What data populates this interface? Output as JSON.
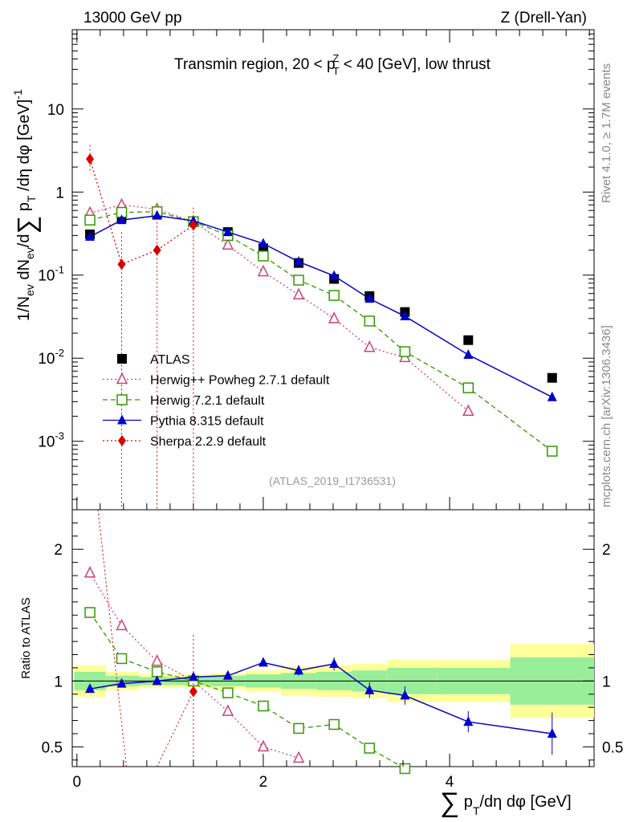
{
  "header": {
    "left": "13000 GeV pp",
    "right": "Z (Drell-Yan)"
  },
  "side_text": {
    "top": "Rivet 4.1.0, ≥ 1.7M events",
    "bottom": "mcplots.cern.ch [arXiv:1306.3436]"
  },
  "chart_data": [
    {
      "type": "scatter",
      "panel": "main",
      "title": "Transmin region, 20 < p_T^Z < 40 [GeV], low thrust",
      "ylabel": "1/N_ev dN_ev/dΣ p_T/dη dφ [GeV]^-1",
      "yscale": "log",
      "xlim": [
        -0.05,
        5.55
      ],
      "ylim": [
        0.00015,
        90
      ],
      "y_ticks": [
        "10^-3",
        "10^-2",
        "10^-1",
        "1",
        "10"
      ],
      "watermark": "(ATLAS_2019_I1736531)",
      "x": [
        0.14,
        0.48,
        0.86,
        1.25,
        1.62,
        2.0,
        2.38,
        2.76,
        3.14,
        3.52,
        4.2,
        5.1
      ],
      "series": [
        {
          "name": "ATLAS",
          "color": "#000000",
          "marker": "square",
          "values": [
            0.31,
            0.49,
            0.54,
            0.44,
            0.33,
            0.21,
            0.14,
            0.09,
            0.056,
            0.036,
            0.0165,
            0.0058
          ]
        },
        {
          "name": "Herwig++ Powheg 2.7.1 default",
          "color": "#cc4477",
          "marker": "triangle-open",
          "line": "dotted",
          "values": [
            0.56,
            0.7,
            0.62,
            0.44,
            0.23,
            0.11,
            0.058,
            0.03,
            0.0135,
            0.0102,
            0.0023,
            null
          ]
        },
        {
          "name": "Herwig 7.2.1 default",
          "color": "#339900",
          "marker": "square-open",
          "line": "dashed",
          "values": [
            0.46,
            0.57,
            0.58,
            0.44,
            0.3,
            0.17,
            0.087,
            0.057,
            0.028,
            0.012,
            0.0044,
            0.00076
          ]
        },
        {
          "name": "Pythia 8.315 default",
          "color": "#0000cc",
          "marker": "triangle",
          "line": "solid",
          "values": [
            0.29,
            0.46,
            0.52,
            0.45,
            0.33,
            0.24,
            0.145,
            0.098,
            0.052,
            0.032,
            0.011,
            0.0034
          ]
        },
        {
          "name": "Sherpa 2.2.9 default",
          "color": "#dd0000",
          "marker": "diamond",
          "line": "dotted",
          "values": [
            2.5,
            0.135,
            0.2,
            0.4,
            null,
            null,
            null,
            null,
            null,
            null,
            null,
            null
          ]
        }
      ]
    },
    {
      "type": "scatter",
      "panel": "ratio",
      "ylabel": "Ratio to ATLAS",
      "xlabel": "Σ p_T/dη dφ [GeV]",
      "ylim": [
        0.35,
        2.3
      ],
      "y_ticks": [
        "0.5",
        "1",
        "2"
      ],
      "x_ticks": [
        "0",
        "2",
        "4"
      ],
      "x": [
        0.14,
        0.48,
        0.86,
        1.25,
        1.62,
        2.0,
        2.38,
        2.76,
        3.14,
        3.52,
        4.2,
        5.1
      ],
      "series": [
        {
          "name": "Herwig++ Powheg 2.7.1 default",
          "values": [
            1.82,
            1.42,
            1.15,
            1.0,
            0.77,
            0.5,
            0.415,
            null,
            null,
            null,
            null,
            null
          ]
        },
        {
          "name": "Herwig 7.2.1 default",
          "values": [
            1.52,
            1.17,
            1.07,
            1.0,
            0.91,
            0.81,
            0.64,
            0.67,
            0.49,
            0.335,
            null,
            null
          ]
        },
        {
          "name": "Pythia 8.315 default",
          "values": [
            0.94,
            0.98,
            1.0,
            1.03,
            1.04,
            1.14,
            1.08,
            1.13,
            0.93,
            0.89,
            0.69,
            0.6
          ]
        },
        {
          "name": "Sherpa 2.2.9 default",
          "values": [
            null,
            null,
            null,
            0.92,
            null,
            null,
            null,
            null,
            null,
            null,
            null,
            null
          ]
        }
      ]
    }
  ]
}
